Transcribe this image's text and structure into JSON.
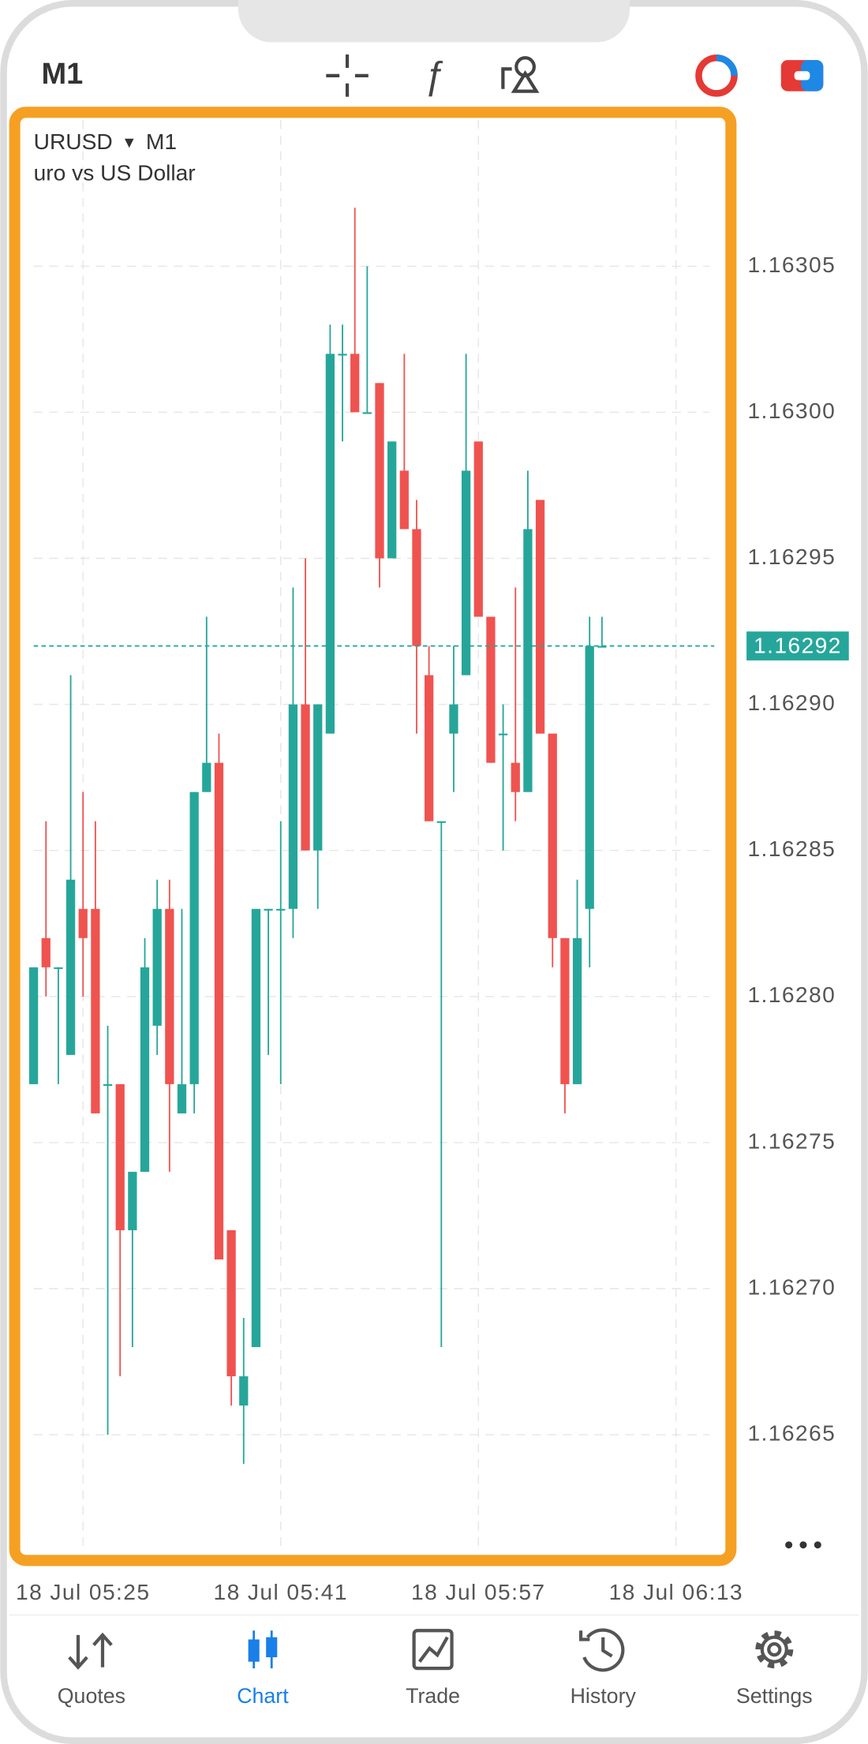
{
  "top_bar": {
    "timeframe": "M1"
  },
  "chart_data": {
    "type": "candlestick",
    "symbol": "URUSD",
    "timeframe": "M1",
    "description": "uro vs US Dollar",
    "open": [
      1.16277,
      1.16282,
      1.16281,
      1.16278,
      1.16283,
      1.16283,
      1.16277,
      1.16277,
      1.16272,
      1.16274,
      1.16279,
      1.16283,
      1.16276,
      1.16277,
      1.16287,
      1.16288,
      1.16272,
      1.16266,
      1.16268,
      1.16283,
      1.16283,
      1.16283,
      1.1629,
      1.16285,
      1.16289,
      1.16302,
      1.16302,
      1.163,
      1.16301,
      1.16295,
      1.16298,
      1.16296,
      1.16291,
      1.16286,
      1.16289,
      1.16291,
      1.16299,
      1.16293,
      1.16289,
      1.16288,
      1.16287,
      1.16297,
      1.16289,
      1.16282,
      1.16277,
      1.16283,
      1.16292
    ],
    "high": [
      1.16281,
      1.16286,
      1.16281,
      1.16291,
      1.16287,
      1.16286,
      1.16279,
      1.16277,
      1.16274,
      1.16282,
      1.16284,
      1.16284,
      1.16283,
      1.16287,
      1.16293,
      1.16289,
      1.16272,
      1.16269,
      1.16283,
      1.16283,
      1.16286,
      1.16294,
      1.16295,
      1.1629,
      1.16303,
      1.16303,
      1.16307,
      1.16305,
      1.16301,
      1.16299,
      1.16302,
      1.16297,
      1.16292,
      1.16286,
      1.16292,
      1.16302,
      1.16299,
      1.16293,
      1.1629,
      1.16294,
      1.16298,
      1.16297,
      1.16289,
      1.16282,
      1.16284,
      1.16293,
      1.16293
    ],
    "low": [
      1.16277,
      1.1628,
      1.16277,
      1.16278,
      1.1628,
      1.16276,
      1.16265,
      1.16267,
      1.16268,
      1.16274,
      1.16278,
      1.16274,
      1.16276,
      1.16276,
      1.16287,
      1.16271,
      1.16266,
      1.16264,
      1.16268,
      1.16278,
      1.16277,
      1.16282,
      1.16285,
      1.16283,
      1.16289,
      1.16299,
      1.163,
      1.163,
      1.16294,
      1.16295,
      1.16296,
      1.16289,
      1.16286,
      1.16268,
      1.16287,
      1.16291,
      1.16293,
      1.16288,
      1.16285,
      1.16286,
      1.16287,
      1.16289,
      1.16281,
      1.16276,
      1.16277,
      1.16281,
      1.16292
    ],
    "close": [
      1.16281,
      1.16281,
      1.16281,
      1.16284,
      1.16282,
      1.16276,
      1.16277,
      1.16272,
      1.16274,
      1.16281,
      1.16283,
      1.16277,
      1.16277,
      1.16287,
      1.16288,
      1.16271,
      1.16267,
      1.16267,
      1.16283,
      1.16283,
      1.16283,
      1.1629,
      1.16285,
      1.1629,
      1.16302,
      1.16302,
      1.163,
      1.163,
      1.16295,
      1.16299,
      1.16296,
      1.16292,
      1.16286,
      1.16286,
      1.1629,
      1.16298,
      1.16293,
      1.16288,
      1.16289,
      1.16287,
      1.16296,
      1.16289,
      1.16282,
      1.16277,
      1.16282,
      1.16292,
      1.16292
    ],
    "colors": {
      "up": "#26a69a",
      "down": "#ef5350"
    },
    "ylim": [
      1.16261,
      1.1631
    ],
    "yticks": [
      1.16265,
      {
        "value": 1.1627,
        "label": "1.16270"
      },
      1.16275,
      {
        "value": 1.1628,
        "label": "1.16280"
      },
      1.16285,
      {
        "value": 1.1629,
        "label": "1.16290"
      },
      1.16295,
      {
        "value": 1.163,
        "label": "1.16300"
      },
      1.16305
    ],
    "xlim": [
      -0.9,
      55.9
    ],
    "xticks": [
      {
        "value": 4,
        "label": "18 Jul 05:25"
      },
      {
        "value": 20,
        "label": "18 Jul 05:41"
      },
      {
        "value": 36,
        "label": "18 Jul 05:57"
      },
      {
        "value": 52,
        "label": "18 Jul 06:13"
      }
    ],
    "current_price": {
      "value": 1.16292,
      "label": "1.16292"
    },
    "grid": true
  },
  "bottom_nav": {
    "items": [
      "Quotes",
      "Chart",
      "Trade",
      "History",
      "Settings"
    ],
    "active": 1
  }
}
